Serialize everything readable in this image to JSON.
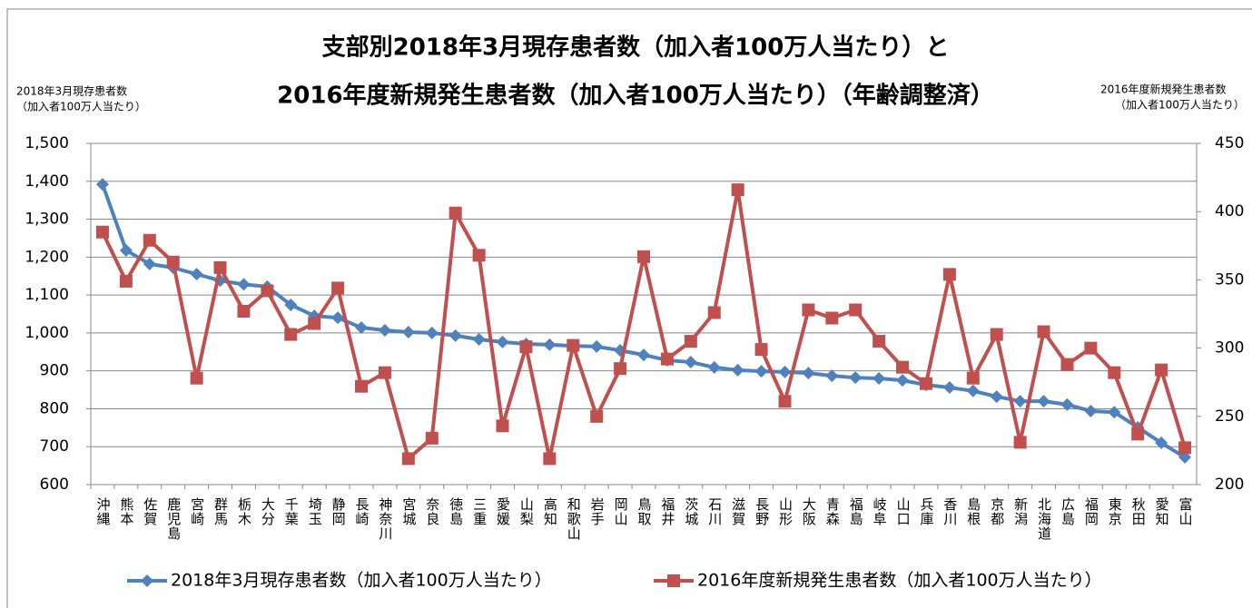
{
  "chart_data": {
    "type": "line",
    "title": [
      "支部別2018年3月現存患者数（加入者100万人当たり）と",
      "2016年度新規発生患者数（加入者100万人当たり）（年齢調整済）"
    ],
    "y_label": [
      "2018年3月現存患者数",
      "（加入者100万人当たり）"
    ],
    "y2_label": [
      "2016年度新規発生患者数",
      "（加入者100万人当たり）"
    ],
    "categories": [
      "沖縄",
      "熊本",
      "佐賀",
      "鹿児島",
      "宮崎",
      "群馬",
      "栃木",
      "大分",
      "千葉",
      "埼玉",
      "静岡",
      "長崎",
      "神奈川",
      "宮城",
      "奈良",
      "徳島",
      "三重",
      "愛媛",
      "山梨",
      "高知",
      "和歌山",
      "岩手",
      "岡山",
      "鳥取",
      "福井",
      "茨城",
      "石川",
      "滋賀",
      "長野",
      "山形",
      "大阪",
      "青森",
      "福島",
      "岐阜",
      "山口",
      "兵庫",
      "香川",
      "島根",
      "京都",
      "新潟",
      "北海道",
      "広島",
      "福岡",
      "東京",
      "秋田",
      "愛知",
      "富山"
    ],
    "series": [
      {
        "name": "2018年3月現存患者数（加入者100万人当たり）",
        "color": "#4f81bd",
        "marker": "diamond",
        "axis": "y",
        "values": [
          1392,
          1218,
          1182,
          1172,
          1155,
          1138,
          1128,
          1122,
          1074,
          1045,
          1040,
          1014,
          1007,
          1002,
          1000,
          993,
          983,
          976,
          971,
          969,
          966,
          964,
          954,
          942,
          928,
          923,
          909,
          902,
          899,
          897,
          894,
          887,
          882,
          880,
          875,
          863,
          856,
          847,
          832,
          820,
          820,
          811,
          794,
          791,
          751,
          710,
          672
        ]
      },
      {
        "name": "2016年度新規発生患者数（加入者100万人当たり）",
        "color": "#c0504d",
        "marker": "square",
        "axis": "y2",
        "values": [
          385,
          349,
          379,
          363,
          278,
          359,
          327,
          342,
          310,
          318,
          344,
          272,
          282,
          219,
          234,
          399,
          368,
          243,
          301,
          219,
          302,
          250,
          285,
          367,
          292,
          305,
          326,
          416,
          299,
          261,
          328,
          322,
          328,
          305,
          286,
          274,
          354,
          278,
          310,
          231,
          312,
          288,
          300,
          282,
          237,
          284,
          227
        ]
      }
    ],
    "ylim": [
      600,
      1500
    ],
    "yticks": [
      {
        "value": 600,
        "label": "600"
      },
      {
        "value": 700,
        "label": "700"
      },
      {
        "value": 800,
        "label": "800"
      },
      {
        "value": 900,
        "label": "900"
      },
      {
        "value": 1000,
        "label": "1,000"
      },
      {
        "value": 1100,
        "label": "1,100"
      },
      {
        "value": 1200,
        "label": "1,200"
      },
      {
        "value": 1300,
        "label": "1,300"
      },
      {
        "value": 1400,
        "label": "1,400"
      },
      {
        "value": 1500,
        "label": "1,500"
      }
    ],
    "y2lim": [
      200,
      450
    ],
    "y2ticks": [
      200,
      250,
      300,
      350,
      400,
      450
    ],
    "grid": true,
    "legend": "bottom"
  }
}
